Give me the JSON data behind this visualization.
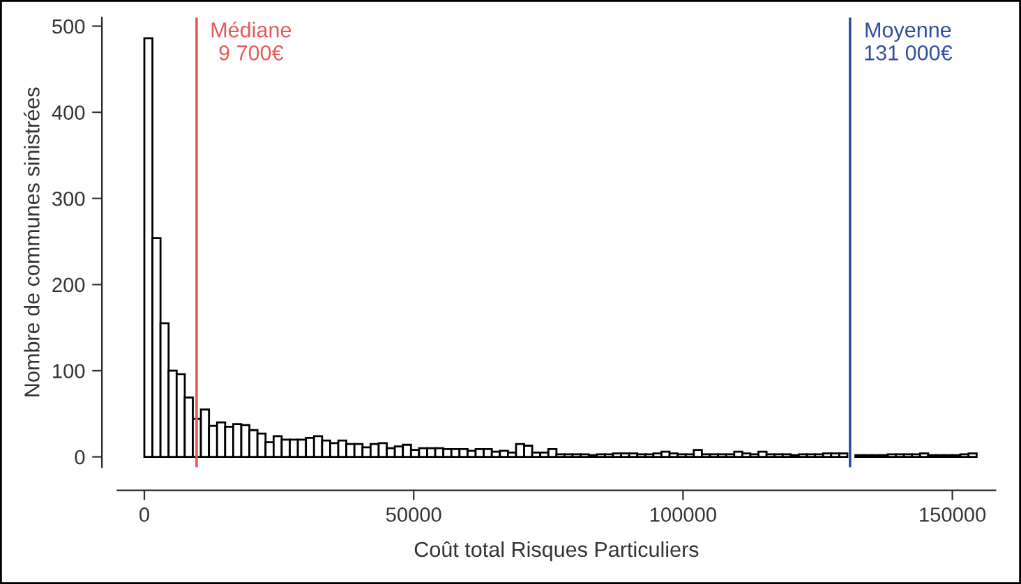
{
  "chart_data": {
    "type": "histogram",
    "xlabel": "Coût total Risques Particuliers",
    "ylabel": "Nombre de communes sinistrées",
    "bins": [
      0,
      1500,
      3000,
      4500,
      6000,
      7500,
      9000,
      10500,
      12000,
      13500,
      15000,
      16500,
      18000,
      19500,
      21000,
      22500,
      24000,
      25500,
      27000,
      28500,
      30000,
      31500,
      33000,
      34500,
      36000,
      37500,
      39000,
      40500,
      42000,
      43500,
      45000,
      46500,
      48000,
      49500,
      51000,
      52500,
      54000,
      55500,
      57000,
      58500,
      60000,
      61500,
      63000,
      64500,
      66000,
      67500,
      69000,
      70500,
      72000,
      73500,
      75000,
      76500,
      78000,
      79500,
      81000,
      82500,
      84000,
      85500,
      87000,
      88500,
      90000,
      91500,
      93000,
      94500,
      96000,
      97500,
      99000,
      100500,
      102000,
      103500,
      105000,
      106500,
      108000,
      109500,
      111000,
      112500,
      114000,
      115500,
      117000,
      118500,
      120000,
      121500,
      123000,
      124500,
      126000,
      127500,
      129000,
      130500,
      132000,
      133500,
      135000,
      136500,
      138000,
      139500,
      141000,
      142500,
      144000,
      145500,
      147000,
      148500,
      150000,
      151500,
      153000,
      154500
    ],
    "values": [
      486,
      254,
      155,
      100,
      96,
      69,
      44,
      55,
      36,
      40,
      35,
      38,
      37,
      31,
      27,
      17,
      24,
      20,
      20,
      20,
      22,
      24,
      19,
      16,
      19,
      15,
      15,
      11,
      15,
      16,
      10,
      12,
      14,
      8,
      10,
      10,
      10,
      9,
      9,
      9,
      7,
      9,
      9,
      6,
      7,
      5,
      15,
      13,
      5,
      5,
      9,
      3,
      3,
      3,
      3,
      2,
      3,
      3,
      4,
      4,
      4,
      3,
      3,
      4,
      6,
      4,
      3,
      3,
      8,
      3,
      3,
      3,
      3,
      6,
      4,
      3,
      6,
      3,
      3,
      3,
      2,
      3,
      3,
      3,
      4,
      4,
      4,
      null,
      2,
      2,
      2,
      2,
      3,
      3,
      3,
      3,
      4,
      2,
      2,
      2,
      2,
      3,
      4
    ],
    "color": "#ffffff",
    "xlim": [
      -5000,
      158000
    ],
    "ylim": [
      -12,
      510
    ],
    "xticks": [
      0,
      50000,
      100000,
      150000
    ],
    "yticks": [
      0,
      100,
      200,
      300,
      400,
      500
    ],
    "ref_lines": [
      {
        "axis": "x",
        "value": 9700,
        "label": "Médiane\n9 700€",
        "color": "#e8585a"
      },
      {
        "axis": "x",
        "value": 131000,
        "label": "Moyenne\n131 000€",
        "color": "#2f4ea0"
      }
    ],
    "grid": false,
    "legend": false
  }
}
